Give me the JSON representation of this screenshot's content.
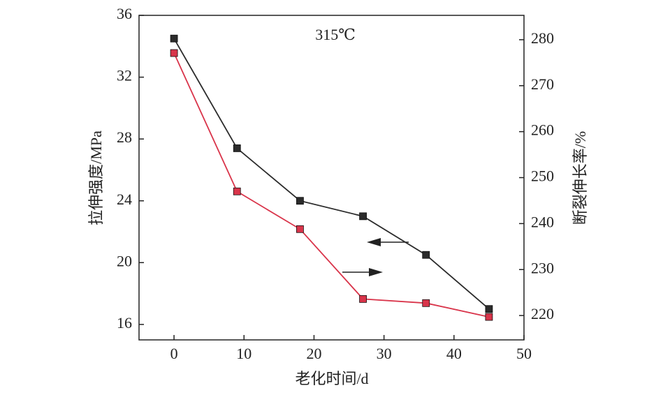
{
  "chart_data": {
    "type": "line",
    "annotation": "315℃",
    "x_label": "老化时间/d",
    "y_label": "拉伸强度/MPa",
    "y2_label": "断裂伸长率/%",
    "x": [
      0,
      9,
      18,
      27,
      36,
      45
    ],
    "xlim": [
      -5,
      50
    ],
    "xticks": [
      0,
      10,
      20,
      30,
      40,
      50
    ],
    "ylim": [
      15,
      36
    ],
    "yticks": [
      16,
      20,
      24,
      28,
      32,
      36
    ],
    "y2lim": [
      214.7,
      285.3
    ],
    "y2ticks": [
      220,
      230,
      240,
      250,
      260,
      270,
      280
    ],
    "series": [
      {
        "color": "#2b2b2b",
        "axis": "y",
        "values": [
          34.5,
          27.4,
          24.0,
          23.0,
          20.5,
          17.0
        ]
      },
      {
        "color": "#d9344a",
        "axis": "y2",
        "values": [
          277.1,
          247.0,
          238.8,
          223.6,
          222.7,
          219.7
        ]
      }
    ]
  }
}
